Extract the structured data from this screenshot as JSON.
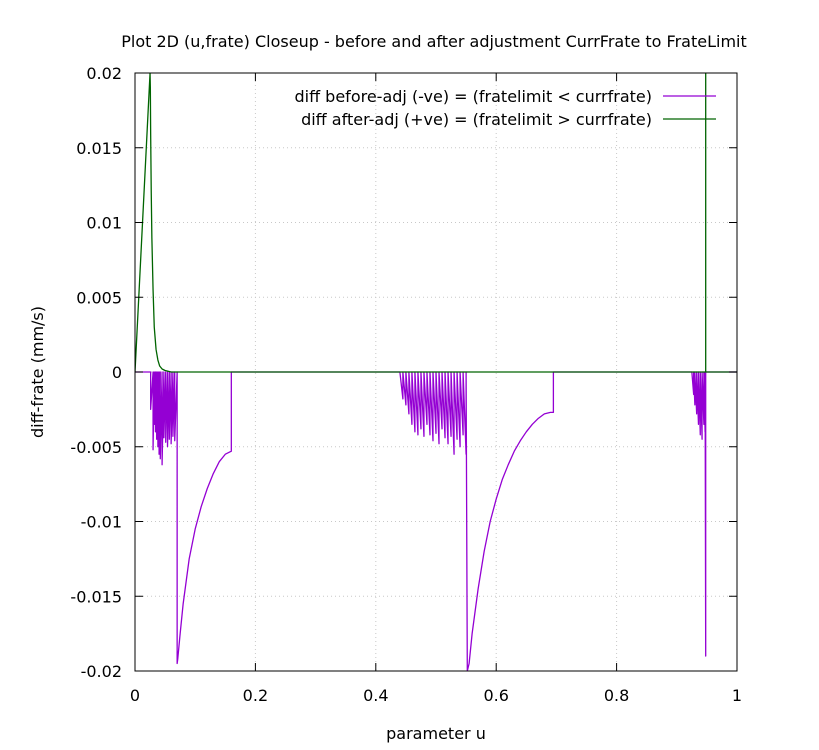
{
  "chart_data": {
    "type": "line",
    "title": "Plot 2D (u,frate) Closeup - before and after adjustment CurrFrate to FrateLimit",
    "xlabel": "parameter u",
    "ylabel": "diff-frate (mm/s)",
    "xlim": [
      0,
      1
    ],
    "ylim": [
      -0.02,
      0.02
    ],
    "x_ticks": [
      0,
      0.2,
      0.4,
      0.6,
      0.8,
      1
    ],
    "x_tick_labels": [
      "0",
      "0.2",
      "0.4",
      "0.6",
      "0.8",
      "1"
    ],
    "y_ticks": [
      -0.02,
      -0.015,
      -0.01,
      -0.005,
      0,
      0.005,
      0.01,
      0.015,
      0.02
    ],
    "y_tick_labels": [
      "-0.02",
      "-0.015",
      "-0.01",
      "-0.005",
      "0",
      "0.005",
      "0.01",
      "0.015",
      "0.02"
    ],
    "grid": true,
    "legend_position": "top-right",
    "series": [
      {
        "name": "diff before-adj (-ve) = (fratelimit < currfrate)",
        "color": "#9400d3",
        "x": [
          0,
          0.025,
          0.026,
          0.026,
          0.03,
          0.03,
          0.032,
          0.032,
          0.034,
          0.034,
          0.036,
          0.036,
          0.038,
          0.038,
          0.04,
          0.04,
          0.042,
          0.042,
          0.045,
          0.045,
          0.048,
          0.048,
          0.051,
          0.051,
          0.054,
          0.054,
          0.057,
          0.057,
          0.06,
          0.06,
          0.063,
          0.063,
          0.066,
          0.066,
          0.07,
          0.07,
          0.071,
          0.075,
          0.08,
          0.09,
          0.1,
          0.11,
          0.12,
          0.13,
          0.14,
          0.15,
          0.16,
          0.16,
          0.3,
          0.44,
          0.445,
          0.445,
          0.45,
          0.45,
          0.455,
          0.455,
          0.46,
          0.46,
          0.465,
          0.465,
          0.47,
          0.47,
          0.475,
          0.475,
          0.48,
          0.48,
          0.485,
          0.485,
          0.49,
          0.49,
          0.495,
          0.495,
          0.5,
          0.5,
          0.505,
          0.505,
          0.51,
          0.51,
          0.515,
          0.515,
          0.52,
          0.52,
          0.525,
          0.525,
          0.53,
          0.53,
          0.535,
          0.535,
          0.54,
          0.54,
          0.545,
          0.545,
          0.55,
          0.55,
          0.552,
          0.552,
          0.555,
          0.56,
          0.57,
          0.58,
          0.59,
          0.6,
          0.61,
          0.62,
          0.63,
          0.64,
          0.65,
          0.66,
          0.67,
          0.68,
          0.69,
          0.695,
          0.695,
          0.8,
          0.925,
          0.928,
          0.928,
          0.93,
          0.93,
          0.933,
          0.933,
          0.936,
          0.936,
          0.939,
          0.939,
          0.942,
          0.942,
          0.945,
          0.945,
          0.947,
          0.947,
          0.948,
          0.948,
          1
        ],
        "y": [
          0,
          0,
          0,
          -0.0025,
          0,
          -0.0052,
          0,
          -0.0035,
          0,
          -0.004,
          0,
          -0.0045,
          0,
          -0.005,
          0,
          -0.0055,
          0,
          -0.0058,
          0,
          -0.0062,
          0,
          -0.0044,
          0,
          -0.0047,
          0,
          -0.005,
          0,
          -0.0045,
          0,
          -0.0048,
          0,
          -0.0043,
          0,
          -0.0046,
          0,
          -0.0195,
          -0.0192,
          -0.0175,
          -0.0155,
          -0.0125,
          -0.0105,
          -0.009,
          -0.0078,
          -0.0068,
          -0.006,
          -0.0055,
          -0.0053,
          0,
          0,
          0,
          -0.0018,
          0,
          -0.0022,
          0,
          -0.0028,
          0,
          -0.0035,
          0,
          -0.004,
          0,
          -0.0042,
          0,
          -0.0038,
          0,
          -0.0043,
          0,
          -0.0035,
          0,
          -0.0042,
          0,
          -0.0046,
          0,
          -0.0041,
          0,
          -0.0048,
          0,
          -0.0038,
          0,
          -0.0044,
          0,
          -0.0048,
          0,
          -0.0043,
          0,
          -0.0055,
          0,
          -0.0045,
          0,
          -0.005,
          0,
          -0.0042,
          0,
          -0.0055,
          0,
          -0.02,
          -0.02,
          -0.0195,
          -0.0175,
          -0.0145,
          -0.012,
          -0.01,
          -0.0085,
          -0.0072,
          -0.0062,
          -0.0053,
          -0.0046,
          -0.004,
          -0.0035,
          -0.0031,
          -0.0028,
          -0.0027,
          -0.0027,
          0,
          0,
          0,
          -0.0015,
          0,
          -0.0022,
          0,
          -0.0028,
          0,
          -0.0035,
          0,
          -0.0042,
          0,
          -0.0045,
          0,
          -0.0035,
          0,
          -0.004,
          0,
          -0.019,
          0,
          0
        ]
      },
      {
        "name": "diff after-adj (+ve) = (fratelimit > currfrate)",
        "color": "#006400",
        "x": [
          0,
          0.025,
          0.0255,
          0.026,
          0.027,
          0.028,
          0.03,
          0.032,
          0.035,
          0.038,
          0.041,
          0.045,
          0.05,
          0.06,
          0.07,
          0.3,
          0.55,
          0.9,
          0.948,
          0.948,
          0.948,
          1
        ],
        "y": [
          0,
          0.02,
          0.019,
          0.016,
          0.012,
          0.009,
          0.0055,
          0.003,
          0.0015,
          0.0008,
          0.0004,
          0.0002,
          0.0001,
          0,
          0,
          0,
          0,
          0,
          0,
          0.02,
          0,
          0
        ]
      }
    ]
  }
}
